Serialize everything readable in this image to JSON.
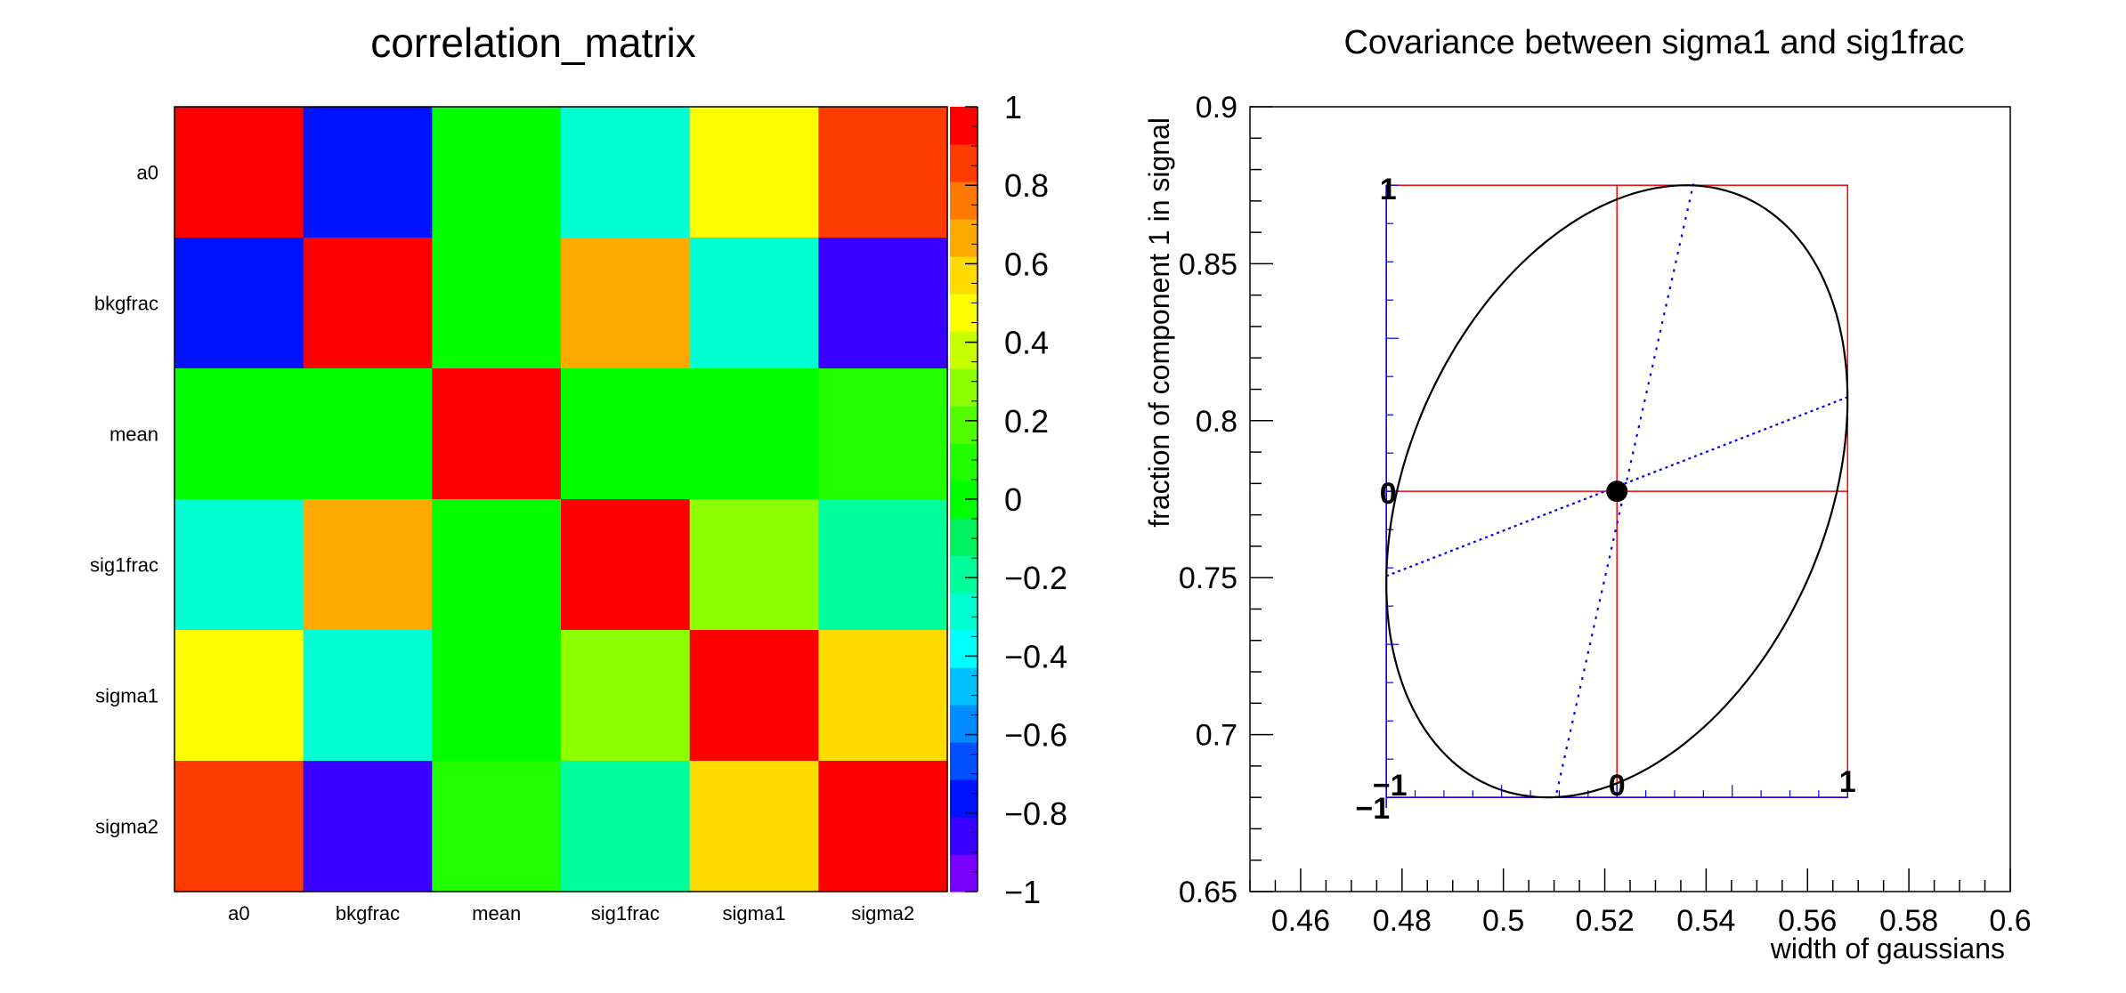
{
  "chart_data": [
    {
      "type": "heatmap",
      "title": "correlation_matrix",
      "variables": [
        "a0",
        "bkgfrac",
        "mean",
        "sig1frac",
        "sigma1",
        "sigma2"
      ],
      "x_labels": [
        "a0",
        "bkgfrac",
        "mean",
        "sig1frac",
        "sigma1",
        "sigma2"
      ],
      "y_labels": [
        "a0",
        "bkgfrac",
        "mean",
        "sig1frac",
        "sigma1",
        "sigma2"
      ],
      "matrix": [
        [
          1.0,
          -0.85,
          0.0,
          -0.35,
          0.45,
          0.85
        ],
        [
          -0.85,
          1.0,
          0.0,
          0.65,
          -0.35,
          -0.9
        ],
        [
          0.0,
          0.0,
          1.0,
          0.0,
          0.0,
          0.05
        ],
        [
          -0.35,
          0.65,
          0.0,
          1.0,
          0.3,
          -0.2
        ],
        [
          0.45,
          -0.35,
          0.0,
          0.3,
          1.0,
          0.55
        ],
        [
          0.85,
          -0.9,
          0.05,
          -0.2,
          0.55,
          1.0
        ]
      ],
      "zlim": [
        -1,
        1
      ],
      "z_ticks": [
        1,
        0.8,
        0.6,
        0.4,
        0.2,
        0,
        -0.2,
        -0.4,
        -0.6,
        -0.8,
        -1
      ],
      "z_tick_labels": [
        "1",
        "0.8",
        "0.6",
        "0.4",
        "0.2",
        "0",
        "−0.2",
        "−0.4",
        "−0.6",
        "−0.8",
        "−1"
      ],
      "palette": [
        "#7a00ff",
        "#3a00ff",
        "#0012ff",
        "#0050ff",
        "#008cff",
        "#00c0ff",
        "#00ffff",
        "#00ffd2",
        "#00ff9c",
        "#00f060",
        "#00ff00",
        "#22ff00",
        "#52ff00",
        "#8cff00",
        "#c8ff00",
        "#ffff00",
        "#ffdc00",
        "#ffaa00",
        "#ff7800",
        "#ff3c00",
        "#ff0000"
      ]
    },
    {
      "type": "scatter",
      "title": "Covariance between sigma1 and sig1frac",
      "xlabel": "width of gaussians",
      "ylabel": "fraction of component 1 in signal",
      "xlim": [
        0.45,
        0.6
      ],
      "ylim": [
        0.65,
        0.9
      ],
      "x_ticks": [
        0.46,
        0.48,
        0.5,
        0.52,
        0.54,
        0.56,
        0.58,
        0.6
      ],
      "x_tick_labels": [
        "0.46",
        "0.48",
        "0.5",
        "0.52",
        "0.54",
        "0.56",
        "0.58",
        "0.6"
      ],
      "y_ticks": [
        0.65,
        0.7,
        0.75,
        0.8,
        0.85,
        0.9
      ],
      "y_tick_labels": [
        "0.65",
        "0.7",
        "0.75",
        "0.8",
        "0.85",
        "0.9"
      ],
      "best_fit": {
        "x": 0.5224,
        "y": 0.7775
      },
      "sigma_x": 0.0455,
      "sigma_y": 0.0975,
      "correlation": 0.3,
      "box": {
        "x": [
          0.4769,
          0.5679
        ],
        "y": [
          0.68,
          0.875
        ]
      },
      "major_axis_dotted": {
        "x": [
          0.5105,
          0.5375
        ],
        "y": [
          0.6815,
          0.8755
        ]
      },
      "minor_axis_dotted": {
        "x": [
          0.4769,
          0.5679
        ],
        "y": [
          0.7505,
          0.8075
        ]
      },
      "box_axis_labels": {
        "top_left": "1",
        "mid_left": "0",
        "bottom_left": "−1",
        "bottom_left_lower": "−1",
        "bottom_mid": "0",
        "bottom_right": "1"
      },
      "colors": {
        "ellipse": "#000000",
        "box": "#ff0000",
        "axes_overlay": "#0000ff",
        "point": "#000000"
      }
    }
  ]
}
